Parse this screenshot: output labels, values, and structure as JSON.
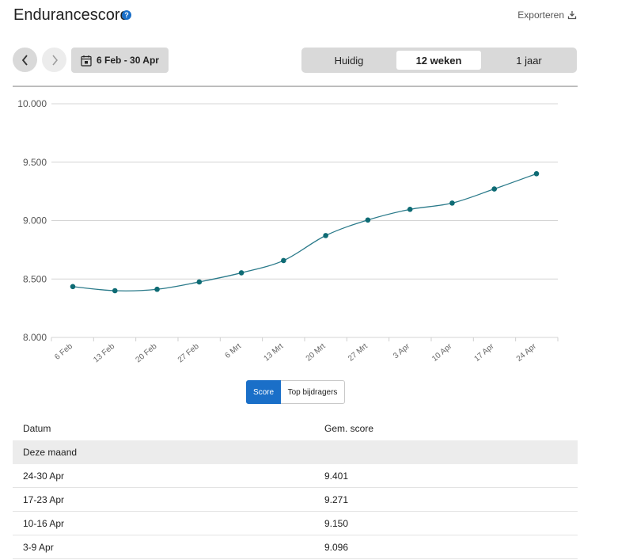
{
  "header": {
    "title": "Endurancescore",
    "help_icon": "?",
    "export_label": "Exporteren"
  },
  "toolbar": {
    "date_range": "6 Feb - 30 Apr",
    "range_tabs": [
      {
        "label": "Huidig",
        "active": false
      },
      {
        "label": "12 weken",
        "active": true
      },
      {
        "label": "1 jaar",
        "active": false
      }
    ]
  },
  "chart_data": {
    "type": "line",
    "categories": [
      "6 Feb",
      "13 Feb",
      "20 Feb",
      "27 Feb",
      "6 Mrt",
      "13 Mrt",
      "20 Mrt",
      "27 Mrt",
      "3 Apr",
      "10 Apr",
      "17 Apr",
      "24 Apr"
    ],
    "values": [
      8435,
      8400,
      8412,
      8475,
      8553,
      8658,
      8872,
      9005,
      9096,
      9150,
      9271,
      9401
    ],
    "y_ticks": [
      "8.000",
      "8.500",
      "9.000",
      "9.500",
      "10.000"
    ],
    "ylim": [
      8000,
      10000
    ],
    "grid": true,
    "line_color": "#2a7a8a",
    "point_color": "#0e6b74"
  },
  "view_toggle": {
    "options": [
      {
        "label": "Score",
        "active": true
      },
      {
        "label": "Top bijdragers",
        "active": false
      }
    ]
  },
  "table": {
    "headers": {
      "date": "Datum",
      "score": "Gem. score"
    },
    "group_label": "Deze maand",
    "rows": [
      {
        "date": "24-30 Apr",
        "score": "9.401"
      },
      {
        "date": "17-23 Apr",
        "score": "9.271"
      },
      {
        "date": "10-16 Apr",
        "score": "9.150"
      },
      {
        "date": "3-9 Apr",
        "score": "9.096"
      }
    ]
  }
}
